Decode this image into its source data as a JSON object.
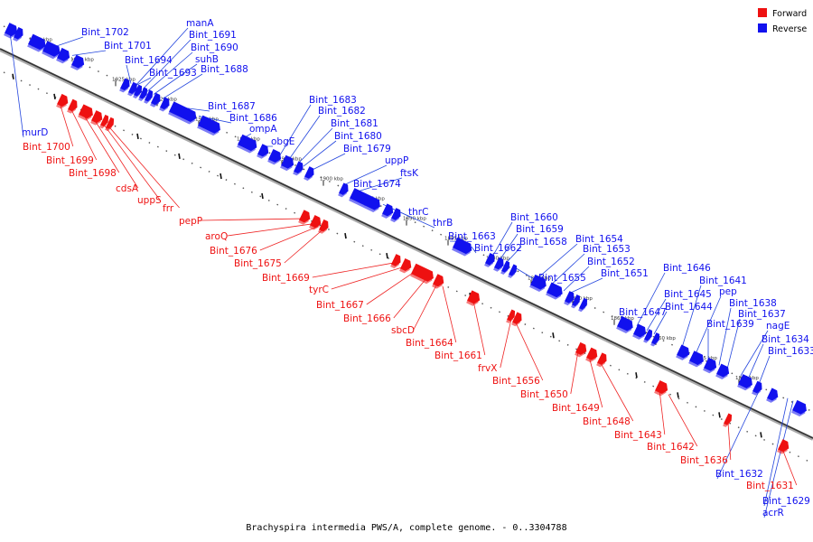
{
  "caption": "Brachyspira intermedia PWS/A, complete genome. - 0..3304788",
  "legend": [
    {
      "label": "Forward",
      "color": "#ee1111"
    },
    {
      "label": "Reverse",
      "color": "#1111ee"
    }
  ],
  "colors": {
    "forward": "#ee1111",
    "reverse": "#1111ee",
    "connector_forward": "#ee2222",
    "connector_reverse": "#2244dd"
  },
  "ticks": [
    "1935 kbp",
    "1930 kbp",
    "1925 kbp",
    "1920 kbp",
    "1915 kbp",
    "1910 kbp",
    "1905 kbp",
    "1900 kbp",
    "1895 kbp",
    "1890 kbp",
    "1885 kbp",
    "1880 kbp",
    "1875 kbp",
    "1870 kbp",
    "1865 kbp",
    "1860 kbp",
    "1855 kbp",
    "1850 kbp"
  ],
  "reverse_labels": [
    "Bint_1702",
    "Bint_1701",
    "Bint_1694",
    "Bint_1693",
    "manA",
    "Bint_1691",
    "Bint_1690",
    "suhB",
    "Bint_1688",
    "Bint_1687",
    "Bint_1686",
    "ompA",
    "obgE",
    "Bint_1683",
    "Bint_1682",
    "Bint_1681",
    "Bint_1680",
    "Bint_1679",
    "uppP",
    "ftsK",
    "Bint_1674",
    "thrC",
    "thrB",
    "Bint_1663",
    "Bint_1662",
    "Bint_1660",
    "Bint_1659",
    "Bint_1658",
    "Bint_1655",
    "Bint_1654",
    "Bint_1653",
    "Bint_1652",
    "Bint_1651",
    "Bint_1647",
    "Bint_1646",
    "Bint_1645",
    "Bint_1644",
    "Bint_1641",
    "pep",
    "Bint_1639",
    "Bint_1638",
    "Bint_1637",
    "nagE",
    "Bint_1634",
    "Bint_1633",
    "Bint_1632",
    "Bint_1629",
    "acrR",
    "murD"
  ],
  "forward_labels": [
    "Bint_1700",
    "Bint_1699",
    "Bint_1698",
    "cdsA",
    "uppS",
    "frr",
    "pepP",
    "aroQ",
    "Bint_1676",
    "Bint_1675",
    "Bint_1669",
    "tyrC",
    "Bint_1667",
    "Bint_1666",
    "sbcD",
    "Bint_1664",
    "Bint_1661",
    "frvX",
    "Bint_1656",
    "Bint_1650",
    "Bint_1649",
    "Bint_1648",
    "Bint_1643",
    "Bint_1642",
    "Bint_1636",
    "Bint_1631"
  ]
}
